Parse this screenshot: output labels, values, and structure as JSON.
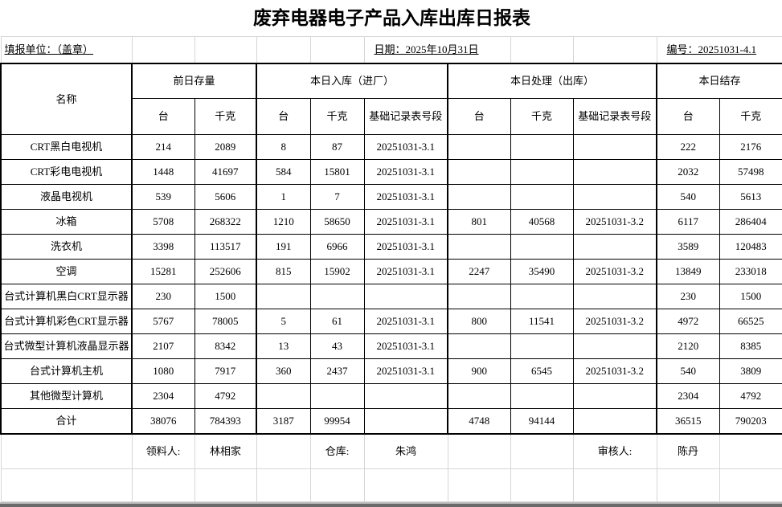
{
  "title": "废弃电器电子产品入库出库日报表",
  "info": {
    "unit": "填报单位：（盖章）",
    "date": "日期：2025年10月31日",
    "code": "编号：20251031-4.1"
  },
  "table": {
    "name_header": "名称",
    "groups": [
      {
        "label": "前日存量"
      },
      {
        "label": "本日入库（进厂）"
      },
      {
        "label": "本日处理（出库）"
      },
      {
        "label": "本日结存"
      }
    ],
    "sub_headers": [
      "台",
      "千克",
      "台",
      "千克",
      "基础记录表号段",
      "台",
      "千克",
      "基础记录表号段",
      "台",
      "千克"
    ],
    "rows": [
      {
        "name": "CRT黑白电视机",
        "values": [
          "214",
          "2089",
          "8",
          "87",
          "20251031-3.1",
          "",
          "",
          "",
          "222",
          "2176"
        ]
      },
      {
        "name": "CRT彩电电视机",
        "values": [
          "1448",
          "41697",
          "584",
          "15801",
          "20251031-3.1",
          "",
          "",
          "",
          "2032",
          "57498"
        ]
      },
      {
        "name": "液晶电视机",
        "values": [
          "539",
          "5606",
          "1",
          "7",
          "20251031-3.1",
          "",
          "",
          "",
          "540",
          "5613"
        ]
      },
      {
        "name": "冰箱",
        "values": [
          "5708",
          "268322",
          "1210",
          "58650",
          "20251031-3.1",
          "801",
          "40568",
          "20251031-3.2",
          "6117",
          "286404"
        ]
      },
      {
        "name": "洗衣机",
        "values": [
          "3398",
          "113517",
          "191",
          "6966",
          "20251031-3.1",
          "",
          "",
          "",
          "3589",
          "120483"
        ]
      },
      {
        "name": "空调",
        "values": [
          "15281",
          "252606",
          "815",
          "15902",
          "20251031-3.1",
          "2247",
          "35490",
          "20251031-3.2",
          "13849",
          "233018"
        ]
      },
      {
        "name": "台式计算机黑白CRT显示器",
        "values": [
          "230",
          "1500",
          "",
          "",
          "",
          "",
          "",
          "",
          "230",
          "1500"
        ]
      },
      {
        "name": "台式计算机彩色CRT显示器",
        "values": [
          "5767",
          "78005",
          "5",
          "61",
          "20251031-3.1",
          "800",
          "11541",
          "20251031-3.2",
          "4972",
          "66525"
        ]
      },
      {
        "name": "台式微型计算机液晶显示器",
        "values": [
          "2107",
          "8342",
          "13",
          "43",
          "20251031-3.1",
          "",
          "",
          "",
          "2120",
          "8385"
        ]
      },
      {
        "name": "台式计算机主机",
        "values": [
          "1080",
          "7917",
          "360",
          "2437",
          "20251031-3.1",
          "900",
          "6545",
          "20251031-3.2",
          "540",
          "3809"
        ]
      },
      {
        "name": "其他微型计算机",
        "values": [
          "2304",
          "4792",
          "",
          "",
          "",
          "",
          "",
          "",
          "2304",
          "4792"
        ]
      },
      {
        "name": "合计",
        "values": [
          "38076",
          "784393",
          "3187",
          "99954",
          "",
          "4748",
          "94144",
          "",
          "36515",
          "790203"
        ]
      }
    ]
  },
  "footer": {
    "cells": [
      "",
      "领料人:",
      "林相家",
      "",
      "仓库:",
      "朱鸿",
      "",
      "",
      "审核人:",
      "陈丹",
      ""
    ],
    "cell_names": [
      "empty-cell",
      "picker-label",
      "picker-name",
      "empty-cell",
      "warehouse-label",
      "warehouse-name",
      "empty-cell",
      "empty-cell",
      "auditor-label",
      "auditor-name",
      "empty-cell"
    ]
  },
  "colors": {
    "table_border": "#000000",
    "gridline": "#d6d6d6",
    "bottom_bar": "#6a6a6a",
    "background": "#ffffff"
  }
}
